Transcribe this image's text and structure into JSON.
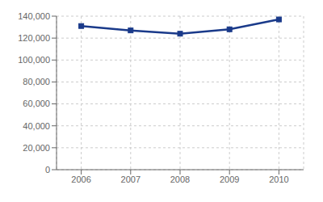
{
  "chart_data": {
    "type": "line",
    "x": [
      2006,
      2007,
      2008,
      2009,
      2010
    ],
    "values": [
      131000,
      127000,
      124000,
      128000,
      137000
    ],
    "color": "#1a3a8a",
    "marker": "square",
    "xlim": [
      2005.5,
      2010.5
    ],
    "xticks": [
      2006,
      2007,
      2008,
      2009,
      2010
    ],
    "ylim": [
      0,
      140000
    ],
    "yticks": [
      0,
      {
        "value": 20000,
        "label": "20,000"
      },
      {
        "value": 40000,
        "label": "40,000"
      },
      {
        "value": 60000,
        "label": "60,000"
      },
      {
        "value": 80000,
        "label": "80,000"
      },
      {
        "value": 100000,
        "label": "100,000"
      },
      {
        "value": 120000,
        "label": "120,000"
      },
      {
        "value": 140000,
        "label": "140,000"
      }
    ],
    "grid": true
  }
}
